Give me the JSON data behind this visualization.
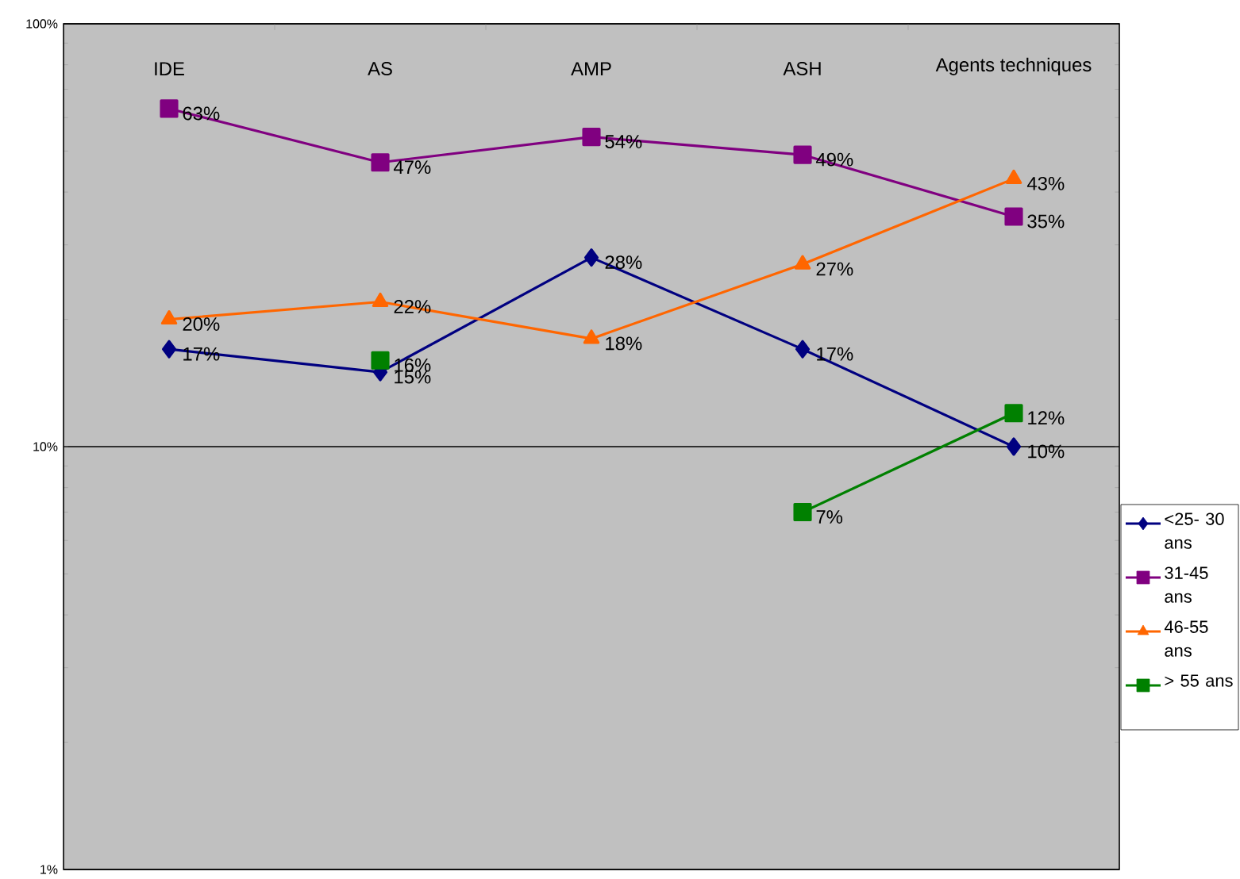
{
  "chart_data": {
    "type": "line",
    "log": "y",
    "grid": "y",
    "legend": "right",
    "categories": [
      "IDE",
      "AS",
      "AMP",
      "ASH",
      "Agents techniques"
    ],
    "ylim": [
      1,
      100
    ],
    "yticks": [
      {
        "value": 1,
        "label": "1%"
      },
      {
        "value": 10,
        "label": "10%"
      },
      {
        "value": 100,
        "label": "100%"
      }
    ],
    "series": [
      {
        "name": "<25- 30 ans",
        "color": "#000080",
        "marker": "diamond",
        "values": [
          17,
          15,
          28,
          17,
          10
        ],
        "value_labels": [
          "17%",
          "15%",
          "28%",
          "17%",
          "10%"
        ]
      },
      {
        "name": "31-45 ans",
        "color": "#800080",
        "marker": "square",
        "values": [
          63,
          47,
          54,
          49,
          35
        ],
        "value_labels": [
          "63%",
          "47%",
          "54%",
          "49%",
          "35%"
        ]
      },
      {
        "name": "46-55 ans",
        "color": "#ff6600",
        "marker": "triangle",
        "values": [
          20,
          22,
          18,
          27,
          43
        ],
        "value_labels": [
          "20%",
          "22%",
          "18%",
          "27%",
          "43%"
        ]
      },
      {
        "name": "> 55 ans",
        "color": "#008000",
        "marker": "square",
        "values": [
          null,
          16,
          null,
          7,
          12
        ],
        "value_labels": [
          null,
          "16%",
          null,
          "7%",
          "12%"
        ]
      }
    ]
  }
}
